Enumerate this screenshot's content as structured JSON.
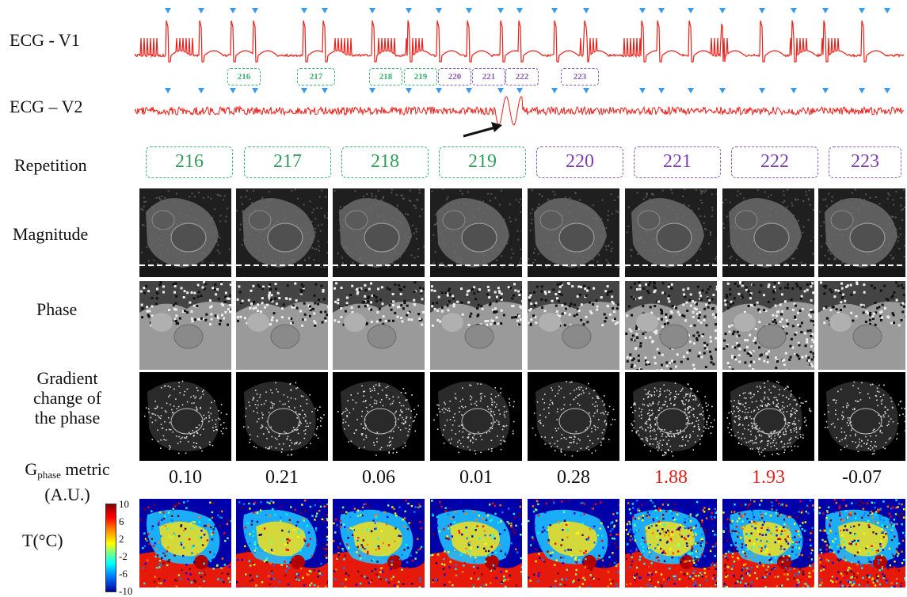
{
  "row_labels": {
    "ecg_v1": "ECG - V1",
    "ecg_v2": "ECG – V2",
    "repetition": "Repetition",
    "magnitude": "Magnitude",
    "phase": "Phase",
    "gradient": [
      "Gradient",
      "change of",
      "the  phase"
    ],
    "gphase_main": "G",
    "gphase_sub": "phase",
    "gphase_rest": " metric",
    "gphase_units": "(A.U.)",
    "temperature": "T(°C)"
  },
  "ecg_repetition_boxes": [
    {
      "label": "216",
      "group": "green"
    },
    {
      "label": "217",
      "group": "green"
    },
    {
      "label": "218",
      "group": "green"
    },
    {
      "label": "219",
      "group": "green"
    },
    {
      "label": "220",
      "group": "purple"
    },
    {
      "label": "221",
      "group": "purple"
    },
    {
      "label": "222",
      "group": "purple"
    },
    {
      "label": "223",
      "group": "purple"
    }
  ],
  "columns": [
    {
      "repetition": "216",
      "group": "green",
      "gphase": "0.10",
      "flag": "normal"
    },
    {
      "repetition": "217",
      "group": "green",
      "gphase": "0.21",
      "flag": "normal"
    },
    {
      "repetition": "218",
      "group": "green",
      "gphase": "0.06",
      "flag": "normal"
    },
    {
      "repetition": "219",
      "group": "green",
      "gphase": "0.01",
      "flag": "normal"
    },
    {
      "repetition": "220",
      "group": "purple",
      "gphase": "0.28",
      "flag": "normal"
    },
    {
      "repetition": "221",
      "group": "purple",
      "gphase": "1.88",
      "flag": "high"
    },
    {
      "repetition": "222",
      "group": "purple",
      "gphase": "1.93",
      "flag": "high"
    },
    {
      "repetition": "223",
      "group": "purple",
      "gphase": "-0.07",
      "flag": "normal"
    }
  ],
  "colorbar": {
    "tick_labels": [
      "10",
      "6",
      "2",
      "-2",
      "-6",
      "-10"
    ]
  },
  "colors": {
    "ecg_trace": "#e8201a",
    "trigger_marker": "#3b9be8",
    "green_group": "#3cb371",
    "purple_group": "#8a5bb7",
    "high_metric": "#e0201b"
  }
}
